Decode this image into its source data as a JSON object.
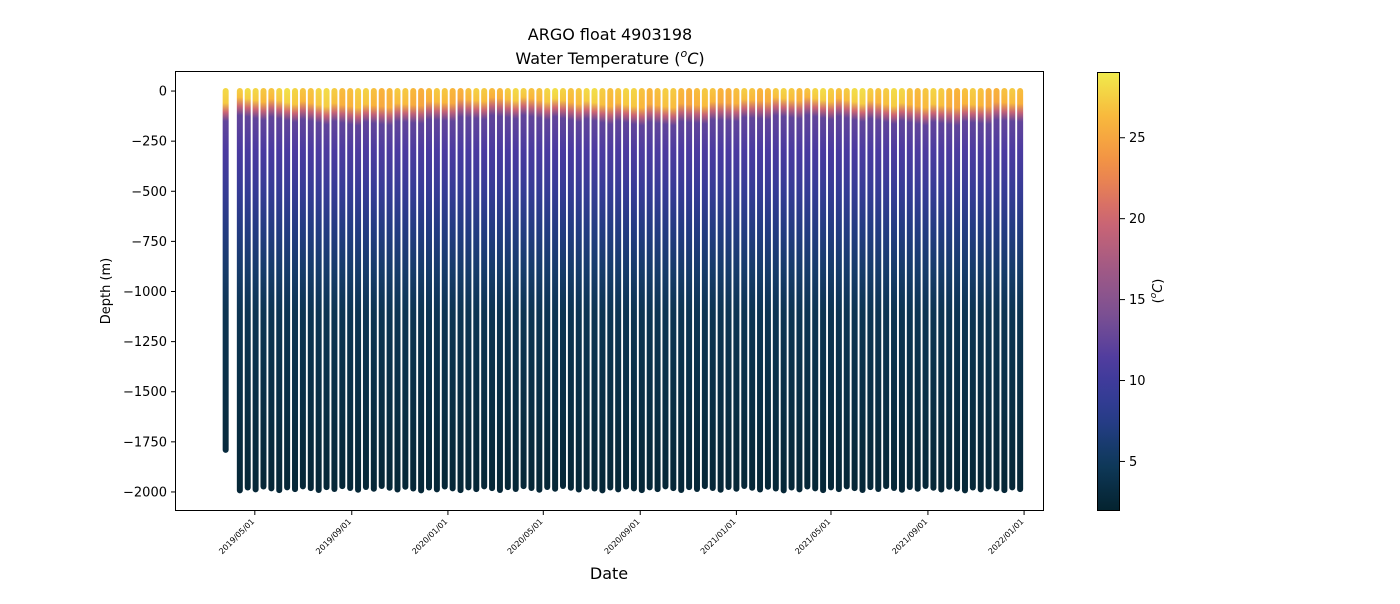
{
  "chart_data": {
    "type": "scatter",
    "title": "ARGO float 4903198",
    "subtitle_text": "Water Temperature (",
    "subtitle_unit_sup": "o",
    "subtitle_unit": "C",
    "subtitle_close": ")",
    "xlabel": "Date",
    "ylabel": "Depth (m)",
    "colorbar_label_open": "(",
    "colorbar_label_sup": "o",
    "colorbar_label_unit": "C",
    "colorbar_label_close": ")",
    "colormap": "thermal",
    "colormap_stops": [
      "#04232f",
      "#0f3a5c",
      "#2a3c8f",
      "#4a3aa0",
      "#7a4f93",
      "#a25a84",
      "#cf6672",
      "#f08b48",
      "#f9b43b",
      "#f0ea4c"
    ],
    "x_axis": {
      "type": "date",
      "range": [
        "2019-01-21",
        "2022-01-25"
      ],
      "ticks": [
        "2019/05/01",
        "2019/09/01",
        "2020/01/01",
        "2020/05/01",
        "2020/09/01",
        "2021/01/01",
        "2021/05/01",
        "2021/09/01",
        "2022/01/01"
      ]
    },
    "y_axis": {
      "range": [
        -2090,
        95
      ],
      "ticks": [
        0,
        -250,
        -500,
        -750,
        -1000,
        -1250,
        -1500,
        -1750,
        -2000
      ],
      "tick_labels": [
        "0",
        "−250",
        "−500",
        "−750",
        "−1000",
        "−1250",
        "−1500",
        "−1750",
        "−2000"
      ]
    },
    "colorbar": {
      "range": [
        2,
        29
      ],
      "ticks": [
        5,
        10,
        15,
        20,
        25
      ],
      "tick_labels": [
        "5",
        "10",
        "15",
        "20",
        "25"
      ]
    },
    "grid": false,
    "profiles": {
      "first_date": "2019-03-25",
      "first_max_depth": -1790,
      "regular_start_date": "2019-04-12",
      "interval_days": 10,
      "count": 100,
      "max_depth_approx": -1980,
      "surface_temp_range": [
        25,
        29
      ],
      "mixed_layer_depth_range": [
        -20,
        -90
      ],
      "deep_temp": 2.5
    }
  }
}
